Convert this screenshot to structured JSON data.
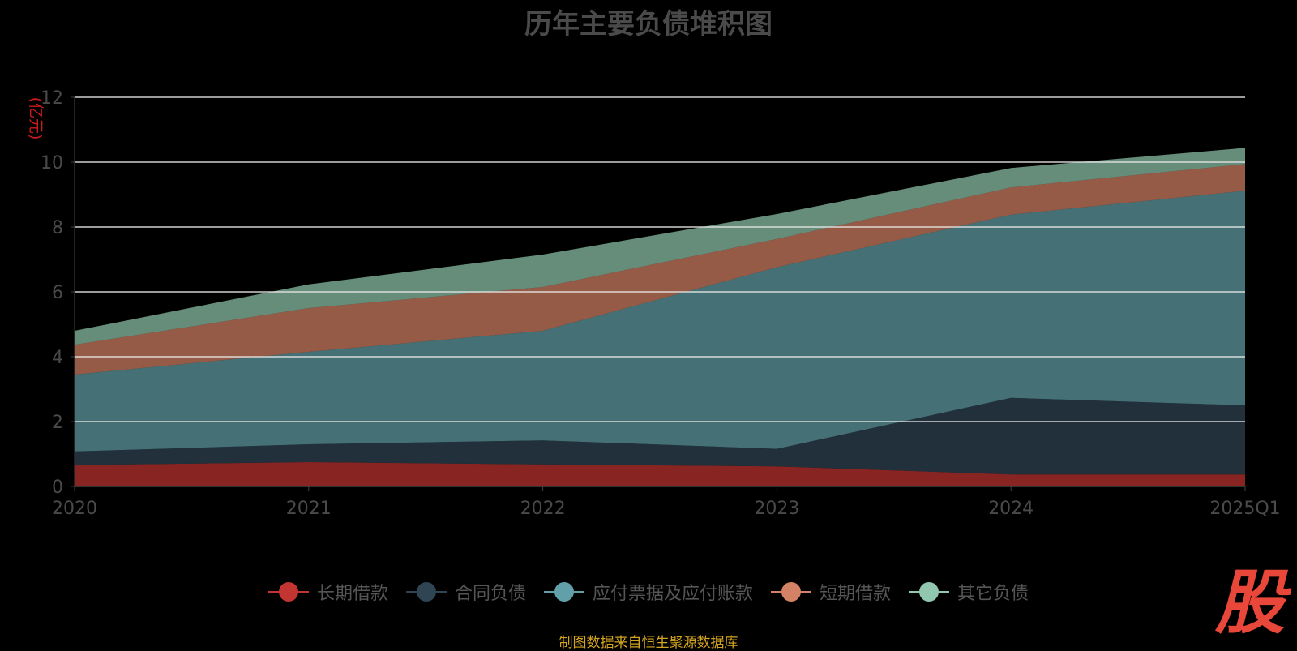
{
  "chart_data": {
    "type": "area",
    "stacked": true,
    "title": "历年主要负债堆积图",
    "ylabel": "(亿元)",
    "xlabel": "",
    "categories": [
      "2020",
      "2021",
      "2022",
      "2023",
      "2024",
      "2025Q1"
    ],
    "ylim": [
      0,
      12
    ],
    "yticks": [
      "0",
      "2",
      "4",
      "6",
      "8",
      "10",
      "12"
    ],
    "grid": true,
    "legend_position": "bottom",
    "series": [
      {
        "name": "长期借款",
        "color": "#c23531",
        "values": [
          0.66,
          0.75,
          0.68,
          0.62,
          0.37,
          0.37
        ]
      },
      {
        "name": "合同负债",
        "color": "#2f4554",
        "values": [
          0.42,
          0.55,
          0.74,
          0.54,
          2.36,
          2.13
        ]
      },
      {
        "name": "应付票据及应付账款",
        "color": "#61a0a8",
        "values": [
          2.37,
          2.85,
          3.38,
          5.6,
          5.65,
          6.62
        ]
      },
      {
        "name": "短期借款",
        "color": "#d48265",
        "values": [
          0.92,
          1.35,
          1.35,
          0.87,
          0.84,
          0.82
        ]
      },
      {
        "name": "其它负债",
        "color": "#91c7ae",
        "values": [
          0.43,
          0.73,
          1.0,
          0.77,
          0.6,
          0.5
        ]
      }
    ]
  },
  "source_text": "制图数据来自恒生聚源数据库",
  "logo_text": "股"
}
